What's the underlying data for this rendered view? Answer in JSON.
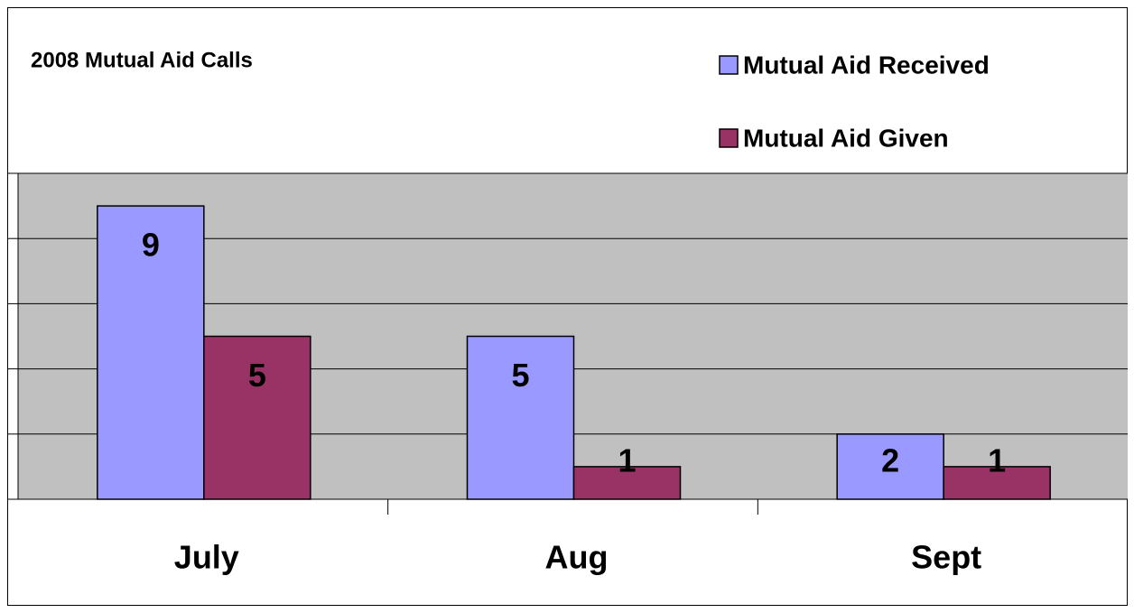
{
  "chart_data": {
    "type": "bar",
    "title": "2008 Mutual Aid Calls",
    "categories": [
      "July",
      "Aug",
      "Sept"
    ],
    "series": [
      {
        "name": "Mutual Aid Received",
        "color": "#9999ff",
        "values": [
          9,
          5,
          2
        ]
      },
      {
        "name": "Mutual Aid Given",
        "color": "#993366",
        "values": [
          5,
          1,
          1
        ]
      }
    ],
    "ylim": [
      0,
      10
    ],
    "yticks": [
      0,
      2,
      4,
      6,
      8,
      10
    ],
    "grid": true,
    "legend": "top-right"
  }
}
